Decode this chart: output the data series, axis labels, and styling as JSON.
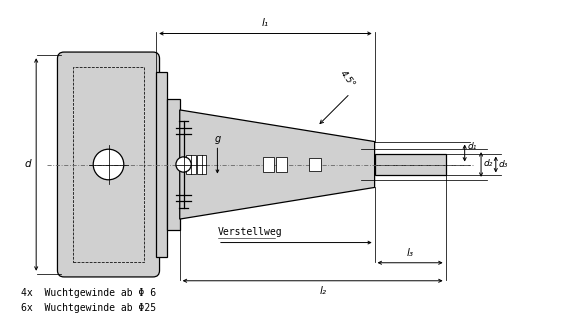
{
  "bg_color": "#ffffff",
  "line_color": "#000000",
  "fill_color": "#d0d0d0",
  "fill_light": "#e0e0e0",
  "centerline_color": "#666666",
  "fig_width": 5.8,
  "fig_height": 3.29,
  "dpi": 100,
  "label_l1": "l₁",
  "label_l2": "l₂",
  "label_l3": "l₃",
  "label_d": "d",
  "label_d1": "d₁",
  "label_d2": "d₂",
  "label_d3": "d₃",
  "label_g": "g",
  "label_angle": "4.5°",
  "label_verstellweg": "Verstellweg",
  "label_text1": "4x  Wuchtgewinde ab Φ 6",
  "label_text2": "6x  Wuchtgewinde ab Φ25",
  "font_size_dim": 7.5,
  "font_size_small": 6.5,
  "font_size_annot": 7.0,
  "font_size_body": 7.0
}
